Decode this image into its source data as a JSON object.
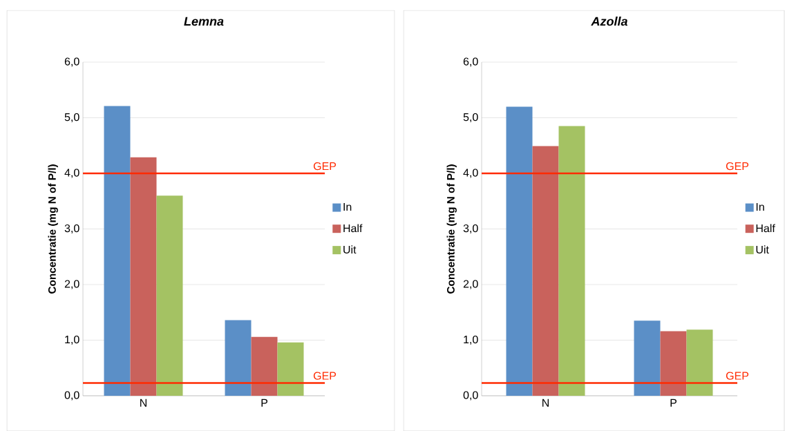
{
  "chart_data": [
    {
      "type": "bar",
      "title": "Lemna",
      "ylabel": "Concentratie (mg N of P/l)",
      "categories": [
        "N",
        "P"
      ],
      "series": [
        {
          "name": "In",
          "color": "#5b8fc7",
          "values": [
            5.21,
            1.36
          ]
        },
        {
          "name": "Half",
          "color": "#c9625c",
          "values": [
            4.29,
            1.06
          ]
        },
        {
          "name": "Uit",
          "color": "#a4c263",
          "values": [
            3.6,
            0.96
          ]
        }
      ],
      "ylim": [
        0,
        6
      ],
      "yticks": [
        {
          "value": 0,
          "label": "0,0"
        },
        {
          "value": 1,
          "label": "1,0"
        },
        {
          "value": 2,
          "label": "2,0"
        },
        {
          "value": 3,
          "label": "3,0"
        },
        {
          "value": 4,
          "label": "4,0"
        },
        {
          "value": 5,
          "label": "5,0"
        },
        {
          "value": 6,
          "label": "6,0"
        }
      ],
      "ref_lines": [
        {
          "axis": "y",
          "value": 4.0,
          "label": "GEP",
          "color": "#ff2a00"
        },
        {
          "axis": "y",
          "value": 0.23,
          "label": "GEP",
          "color": "#ff2a00"
        }
      ],
      "grid": "y",
      "legend": "right"
    },
    {
      "type": "bar",
      "title": "Azolla",
      "ylabel": "Concentratie (mg N of P/l)",
      "categories": [
        "N",
        "P"
      ],
      "series": [
        {
          "name": "In",
          "color": "#5b8fc7",
          "values": [
            5.2,
            1.35
          ]
        },
        {
          "name": "Half",
          "color": "#c9625c",
          "values": [
            4.49,
            1.16
          ]
        },
        {
          "name": "Uit",
          "color": "#a4c263",
          "values": [
            4.85,
            1.19
          ]
        }
      ],
      "ylim": [
        0,
        6
      ],
      "yticks": [
        {
          "value": 0,
          "label": "0,0"
        },
        {
          "value": 1,
          "label": "1,0"
        },
        {
          "value": 2,
          "label": "2,0"
        },
        {
          "value": 3,
          "label": "3,0"
        },
        {
          "value": 4,
          "label": "4,0"
        },
        {
          "value": 5,
          "label": "5,0"
        },
        {
          "value": 6,
          "label": "6,0"
        }
      ],
      "ref_lines": [
        {
          "axis": "y",
          "value": 4.0,
          "label": "GEP",
          "color": "#ff2a00"
        },
        {
          "axis": "y",
          "value": 0.23,
          "label": "GEP",
          "color": "#ff2a00"
        }
      ],
      "grid": "y",
      "legend": "right"
    }
  ]
}
